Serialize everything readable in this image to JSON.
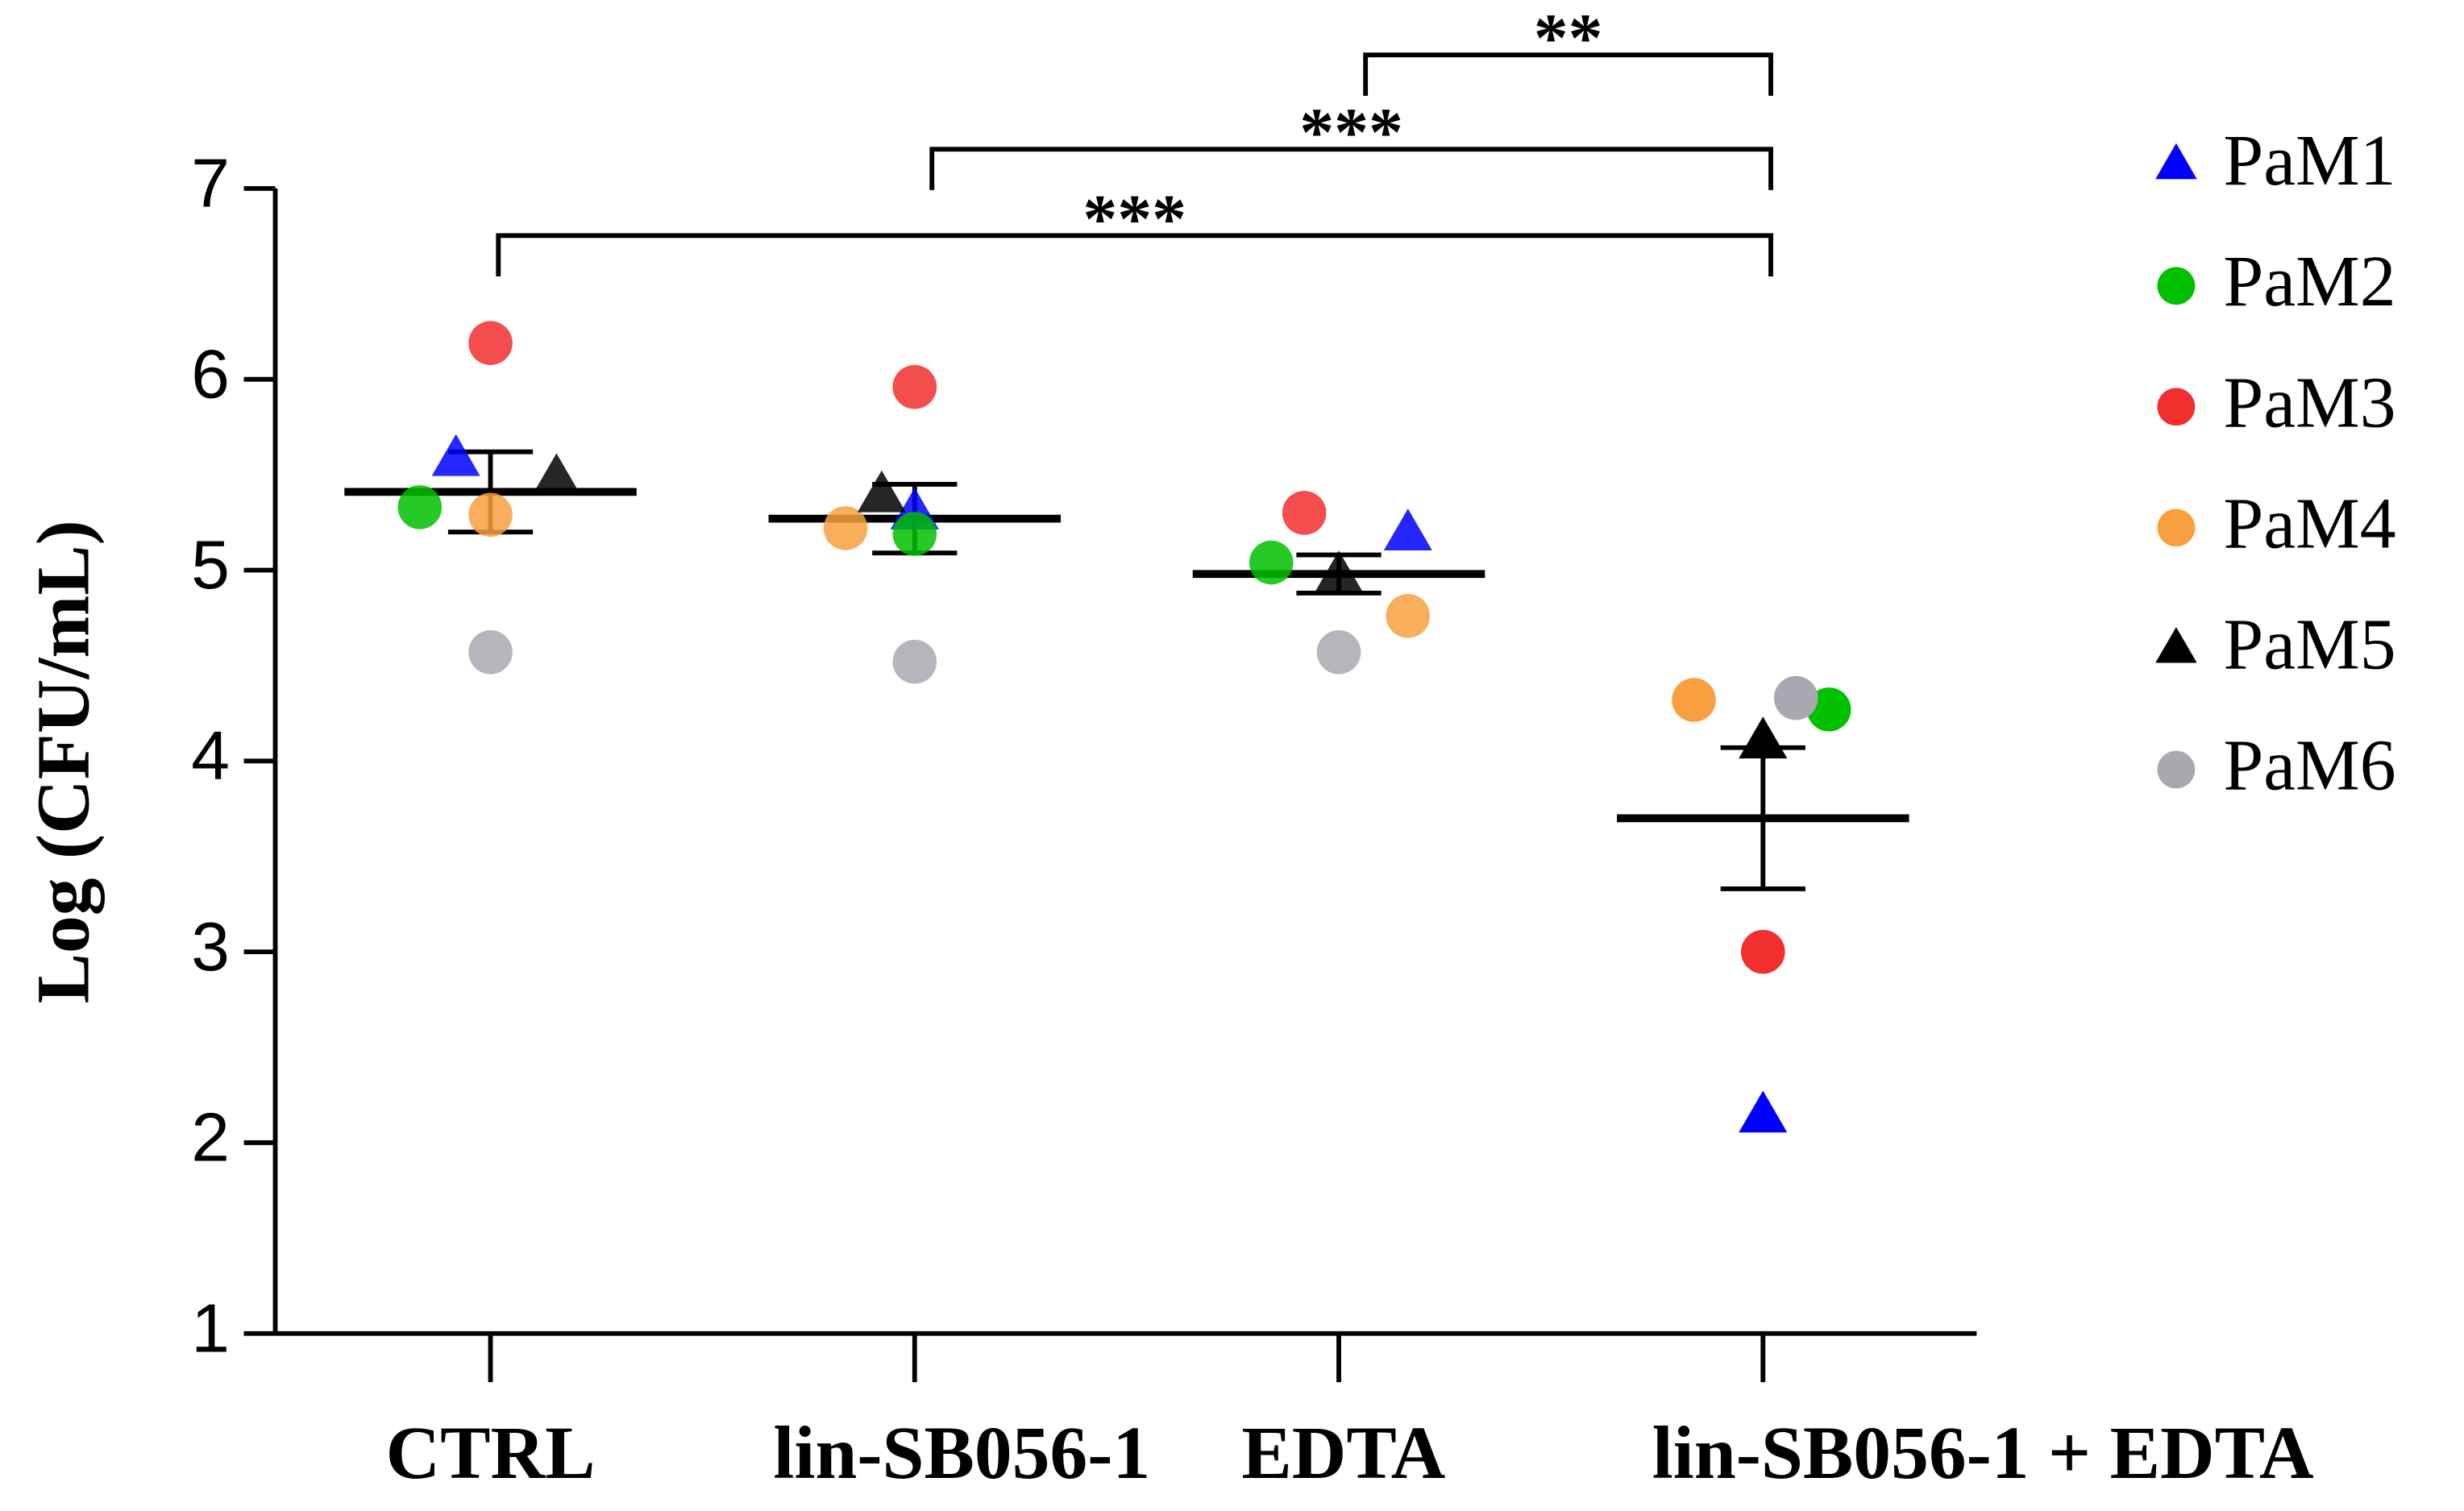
{
  "chart_data": {
    "type": "scatter",
    "ylabel": "Log (CFU/mL)",
    "categories": [
      "CTRL",
      "lin-SB056-1",
      "EDTA",
      "lin-SB056-1 + EDTA"
    ],
    "ylim": [
      1,
      7
    ],
    "yticks": [
      1,
      2,
      3,
      4,
      5,
      6,
      7
    ],
    "legend": "right",
    "series": [
      {
        "name": "PaM1",
        "color": "#0000ff",
        "marker": "triangle",
        "values": [
          5.58,
          5.3,
          5.19,
          2.14
        ]
      },
      {
        "name": "PaM2",
        "color": "#00c000",
        "marker": "circle",
        "values": [
          5.33,
          5.19,
          5.04,
          4.27
        ]
      },
      {
        "name": "PaM3",
        "color": "#f22e2e",
        "marker": "circle",
        "values": [
          6.19,
          5.96,
          5.3,
          3.0
        ]
      },
      {
        "name": "PaM4",
        "color": "#f8a040",
        "marker": "circle",
        "values": [
          5.29,
          5.22,
          4.76,
          4.32
        ]
      },
      {
        "name": "PaM5",
        "color": "#000000",
        "marker": "triangle",
        "values": [
          5.48,
          5.39,
          4.97,
          4.1
        ]
      },
      {
        "name": "PaM6",
        "color": "#a8a8b0",
        "marker": "circle",
        "values": [
          4.57,
          4.52,
          4.57,
          4.33
        ]
      }
    ],
    "means": [
      5.41,
      5.27,
      4.98,
      3.7
    ],
    "errors": [
      0.21,
      0.18,
      0.1,
      0.37
    ],
    "annotations": [
      {
        "from": "CTRL",
        "to": "lin-SB056-1 + EDTA",
        "label": "***"
      },
      {
        "from": "lin-SB056-1",
        "to": "lin-SB056-1 + EDTA",
        "label": "***"
      },
      {
        "from": "EDTA",
        "to": "lin-SB056-1 + EDTA",
        "label": "**"
      }
    ]
  }
}
